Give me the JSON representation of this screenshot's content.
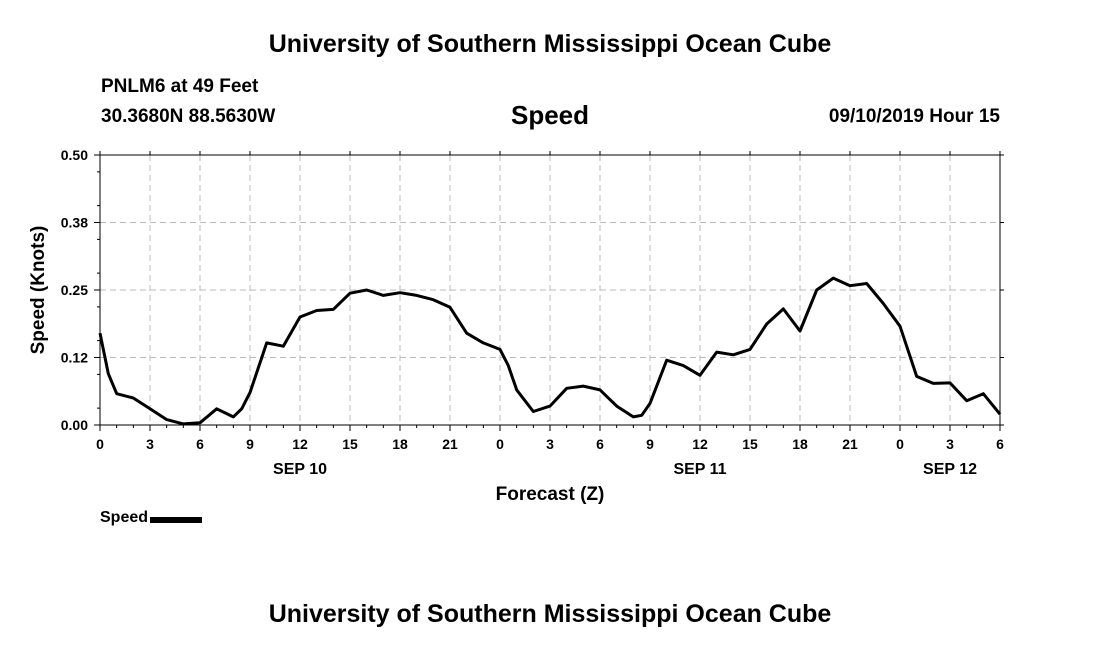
{
  "header": {
    "title": "University of Southern Mississippi Ocean Cube",
    "station": "PNLM6 at 49 Feet",
    "coords": "30.3680N 88.5630W",
    "datetime": "09/10/2019 Hour 15"
  },
  "footer": {
    "title": "University of Southern Mississippi Ocean Cube"
  },
  "legend": {
    "label": "Speed"
  },
  "chart_data": {
    "type": "line",
    "title": "Speed",
    "xlabel": "Forecast (Z)",
    "ylabel": "Speed (Knots)",
    "xlim": [
      0,
      54
    ],
    "ylim": [
      0.0,
      0.5
    ],
    "grid": true,
    "legend_position": "bottom-left",
    "y_ticks": [
      "0.00",
      "0.12",
      "0.25",
      "0.38",
      "0.50"
    ],
    "y_tick_values": [
      0.0,
      0.125,
      0.25,
      0.375,
      0.5
    ],
    "x_ticks": [
      {
        "hour": 0,
        "label": "0"
      },
      {
        "hour": 3,
        "label": "3"
      },
      {
        "hour": 6,
        "label": "6"
      },
      {
        "hour": 9,
        "label": "9"
      },
      {
        "hour": 12,
        "label": "12"
      },
      {
        "hour": 15,
        "label": "15"
      },
      {
        "hour": 18,
        "label": "18"
      },
      {
        "hour": 21,
        "label": "21"
      },
      {
        "hour": 24,
        "label": "0"
      },
      {
        "hour": 27,
        "label": "3"
      },
      {
        "hour": 30,
        "label": "6"
      },
      {
        "hour": 33,
        "label": "9"
      },
      {
        "hour": 36,
        "label": "12"
      },
      {
        "hour": 39,
        "label": "15"
      },
      {
        "hour": 42,
        "label": "18"
      },
      {
        "hour": 45,
        "label": "21"
      },
      {
        "hour": 48,
        "label": "0"
      },
      {
        "hour": 51,
        "label": "3"
      },
      {
        "hour": 54,
        "label": "6"
      }
    ],
    "date_labels": [
      {
        "hour": 12,
        "label": "SEP 10"
      },
      {
        "hour": 36,
        "label": "SEP 11"
      },
      {
        "hour": 51,
        "label": "SEP 12"
      }
    ],
    "series": [
      {
        "name": "Speed",
        "x": [
          0,
          0.5,
          1,
          2,
          3,
          4,
          5,
          6,
          7,
          8,
          8.5,
          9,
          10,
          11,
          12,
          13,
          14,
          15,
          16,
          17,
          18,
          19,
          20,
          21,
          22,
          23,
          24,
          24.5,
          25,
          26,
          27,
          28,
          29,
          30,
          31,
          32,
          32.5,
          33,
          34,
          35,
          36,
          37,
          38,
          39,
          40,
          41,
          42,
          43,
          44,
          45,
          46,
          47,
          48,
          49,
          50,
          51,
          52,
          53,
          54
        ],
        "values": [
          0.17,
          0.095,
          0.058,
          0.05,
          0.03,
          0.01,
          0.002,
          0.004,
          0.03,
          0.015,
          0.03,
          0.06,
          0.152,
          0.146,
          0.2,
          0.212,
          0.214,
          0.244,
          0.25,
          0.24,
          0.245,
          0.24,
          0.232,
          0.218,
          0.17,
          0.152,
          0.14,
          0.11,
          0.065,
          0.025,
          0.035,
          0.068,
          0.072,
          0.065,
          0.035,
          0.015,
          0.018,
          0.04,
          0.12,
          0.11,
          0.092,
          0.135,
          0.13,
          0.14,
          0.187,
          0.215,
          0.174,
          0.25,
          0.272,
          0.258,
          0.262,
          0.225,
          0.183,
          0.09,
          0.077,
          0.078,
          0.045,
          0.058,
          0.02
        ]
      }
    ]
  }
}
